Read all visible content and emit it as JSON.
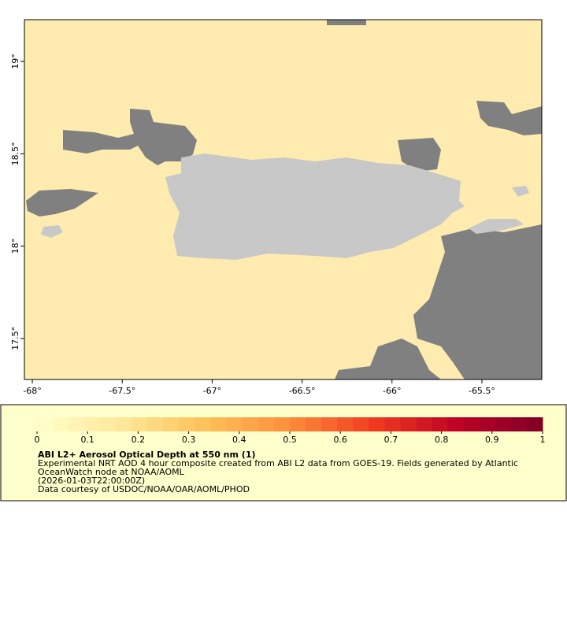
{
  "map": {
    "xlim": [
      -68.044,
      -65.167
    ],
    "ylim": [
      17.278,
      19.226
    ],
    "xticks": [
      {
        "value": -68,
        "label": "-68°"
      },
      {
        "value": -67.5,
        "label": "-67.5°"
      },
      {
        "value": -67,
        "label": "-67°"
      },
      {
        "value": -66.5,
        "label": "-66.5°"
      },
      {
        "value": -66,
        "label": "-66°"
      },
      {
        "value": -65.5,
        "label": "-65.5°"
      }
    ],
    "yticks": [
      {
        "value": 19,
        "label": "19°"
      },
      {
        "value": 18.5,
        "label": "18.5°"
      },
      {
        "value": 18,
        "label": "18°"
      },
      {
        "value": 17.5,
        "label": "17.5°"
      }
    ]
  },
  "colorbar": {
    "lim": [
      0,
      1
    ],
    "ticks": [
      0,
      0.1,
      0.2,
      0.3,
      0.4,
      0.5,
      0.6,
      0.7,
      0.8,
      0.9,
      1
    ],
    "colors": [
      "#ffffcc",
      "#fee89a",
      "#fec15a",
      "#fd8d3c",
      "#f03b20",
      "#bd0026",
      "#800026"
    ]
  },
  "legend": {
    "title": "ABI L2+ Aerosol Optical Depth at 550 nm (1)",
    "lines": [
      "Experimental NRT AOD 4 hour composite created from ABI L2 data from GOES-19. Fields generated by Atlantic",
      "OceanWatch node at NOAA/AOML",
      "(2026-01-03T22:00:00Z)",
      "Data courtesy of USDOC/NOAA/OAR/AOML/PHOD"
    ]
  }
}
